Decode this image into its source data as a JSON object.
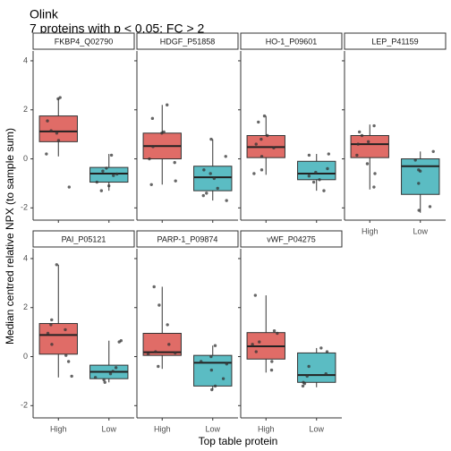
{
  "chart_data": {
    "type": "boxplot",
    "title": "Olink",
    "subtitle": "7 proteins with p < 0.05; FC > 2",
    "xlabel": "Top table protein",
    "ylabel": "Median centred relative NPX (to sample sum)",
    "ylim": [
      -2.5,
      4.4
    ],
    "yticks": [
      -2,
      0,
      2,
      4
    ],
    "categories": [
      "High",
      "Low"
    ],
    "colors": {
      "High": "#E06C67",
      "Low": "#5BBCC3"
    },
    "panels": [
      {
        "name": "FKBP4_Q02790",
        "boxes": [
          {
            "group": "High",
            "q1": 0.7,
            "median": 1.12,
            "q3": 1.75,
            "whisker_low": 0.1,
            "whisker_high": 2.45,
            "points": [
              2.45,
              2.5,
              1.55,
              1.15,
              1.05,
              0.75,
              0.2,
              -1.15
            ]
          },
          {
            "group": "Low",
            "q1": -0.95,
            "median": -0.6,
            "q3": -0.35,
            "whisker_low": -1.3,
            "whisker_high": 0.2,
            "points": [
              0.15,
              -0.38,
              -0.5,
              -0.62,
              -0.68,
              -0.95,
              -1.1,
              -1.3
            ]
          }
        ]
      },
      {
        "name": "HDGF_P51858",
        "boxes": [
          {
            "group": "High",
            "q1": 0.0,
            "median": 0.52,
            "q3": 1.05,
            "whisker_low": -1.05,
            "whisker_high": 2.2,
            "points": [
              2.2,
              1.65,
              1.1,
              1.05,
              0.5,
              0.0,
              -0.15,
              -0.9,
              -1.05
            ]
          },
          {
            "group": "Low",
            "q1": -1.3,
            "median": -0.75,
            "q3": -0.3,
            "whisker_low": -1.7,
            "whisker_high": 0.8,
            "points": [
              0.8,
              0.1,
              -0.45,
              -0.6,
              -0.8,
              -1.2,
              -1.4,
              -1.5,
              -1.7
            ]
          }
        ]
      },
      {
        "name": "HO-1_P09601",
        "boxes": [
          {
            "group": "High",
            "q1": 0.05,
            "median": 0.48,
            "q3": 0.95,
            "whisker_low": -0.65,
            "whisker_high": 1.75,
            "points": [
              1.75,
              1.5,
              0.95,
              0.8,
              0.6,
              0.45,
              0.1,
              -0.45,
              -0.6
            ]
          },
          {
            "group": "Low",
            "q1": -0.85,
            "median": -0.6,
            "q3": -0.1,
            "whisker_low": -1.3,
            "whisker_high": 0.2,
            "points": [
              0.2,
              0.15,
              -0.4,
              -0.55,
              -0.7,
              -0.85,
              -0.95,
              -1.3
            ]
          }
        ]
      },
      {
        "name": "LEP_P41159",
        "boxes": [
          {
            "group": "High",
            "q1": 0.05,
            "median": 0.6,
            "q3": 0.95,
            "whisker_low": -1.25,
            "whisker_high": 1.4,
            "points": [
              1.35,
              1.1,
              0.95,
              0.7,
              0.6,
              0.15,
              -0.2,
              -0.6,
              -1.15
            ]
          },
          {
            "group": "Low",
            "q1": -1.45,
            "median": -0.3,
            "q3": 0.0,
            "whisker_low": -2.2,
            "whisker_high": 0.3,
            "points": [
              0.3,
              -0.05,
              -0.45,
              -0.5,
              -1.0,
              -1.95,
              -2.1
            ]
          }
        ]
      },
      {
        "name": "PAI_P05121",
        "boxes": [
          {
            "group": "High",
            "q1": 0.1,
            "median": 0.88,
            "q3": 1.35,
            "whisker_low": -0.85,
            "whisker_high": 3.75,
            "points": [
              3.75,
              1.5,
              1.3,
              1.1,
              0.95,
              0.5,
              0.05,
              -0.2,
              -0.8
            ]
          },
          {
            "group": "Low",
            "q1": -0.9,
            "median": -0.62,
            "q3": -0.35,
            "whisker_low": -1.05,
            "whisker_high": 0.65,
            "points": [
              0.65,
              0.6,
              -0.45,
              -0.6,
              -0.7,
              -0.85,
              -0.95,
              -1.05
            ]
          }
        ]
      },
      {
        "name": "PARP-1_P09874",
        "boxes": [
          {
            "group": "High",
            "q1": 0.05,
            "median": 0.18,
            "q3": 0.95,
            "whisker_low": -0.5,
            "whisker_high": 2.85,
            "points": [
              2.85,
              2.1,
              1.3,
              0.5,
              0.2,
              0.15,
              0.1,
              -0.4
            ]
          },
          {
            "group": "Low",
            "q1": -1.2,
            "median": -0.25,
            "q3": 0.05,
            "whisker_low": -1.35,
            "whisker_high": 0.45,
            "points": [
              0.45,
              0.0,
              -0.2,
              -0.3,
              -0.55,
              -0.9,
              -1.2,
              -1.35
            ]
          }
        ]
      },
      {
        "name": "vWF_P04275",
        "boxes": [
          {
            "group": "High",
            "q1": -0.1,
            "median": 0.42,
            "q3": 0.98,
            "whisker_low": -0.65,
            "whisker_high": 2.5,
            "points": [
              2.5,
              1.05,
              0.95,
              0.6,
              0.5,
              0.2,
              -0.2,
              -0.55
            ]
          },
          {
            "group": "Low",
            "q1": -1.05,
            "median": -0.75,
            "q3": 0.15,
            "whisker_low": -1.25,
            "whisker_high": 0.35,
            "points": [
              0.35,
              0.2,
              -0.4,
              -0.7,
              -0.8,
              -1.05,
              -1.1,
              -1.2
            ]
          }
        ]
      }
    ]
  }
}
